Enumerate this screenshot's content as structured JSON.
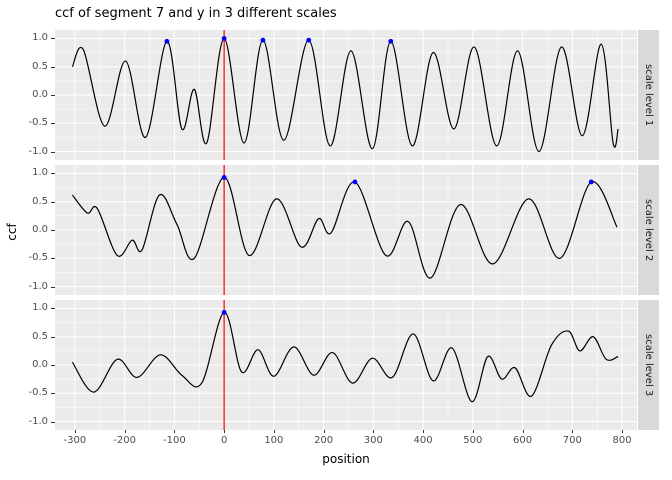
{
  "chart_data": {
    "type": "line",
    "title": "ccf of segment 7 and y in 3 different scales",
    "xlabel": "position",
    "ylabel": "ccf",
    "xlim": [
      -340,
      830
    ],
    "ylim": [
      -1.15,
      1.15
    ],
    "x_ticks": [
      -300,
      -200,
      -100,
      0,
      100,
      200,
      300,
      400,
      500,
      600,
      700,
      800
    ],
    "x_minor": [
      -250,
      -150,
      -50,
      50,
      150,
      250,
      350,
      450,
      550,
      650,
      750
    ],
    "y_ticks": [
      -1.0,
      -0.5,
      0.0,
      0.5,
      1.0
    ],
    "y_minor": [
      -0.75,
      -0.25,
      0.25,
      0.75
    ],
    "grid": "on",
    "vline": {
      "x": 0,
      "color": "#ff0000"
    },
    "colors": {
      "line": "#000000",
      "point": "#0000ff",
      "panel_bg": "#ebebeb",
      "strip_bg": "#d9d9d9",
      "grid": "#ffffff",
      "tick_text": "#4d4d4d"
    },
    "panels": [
      {
        "strip_label": "scale level 1",
        "keypoints": [
          [
            -305,
            0.5
          ],
          [
            -283,
            0.8
          ],
          [
            -240,
            -0.55
          ],
          [
            -198,
            0.6
          ],
          [
            -158,
            -0.75
          ],
          [
            -115,
            0.95
          ],
          [
            -85,
            -0.6
          ],
          [
            -60,
            0.1
          ],
          [
            -35,
            -0.85
          ],
          [
            0,
            1.0
          ],
          [
            40,
            -0.85
          ],
          [
            78,
            0.97
          ],
          [
            120,
            -0.8
          ],
          [
            170,
            0.97
          ],
          [
            213,
            -0.9
          ],
          [
            255,
            0.78
          ],
          [
            298,
            -0.95
          ],
          [
            335,
            0.95
          ],
          [
            378,
            -0.9
          ],
          [
            420,
            0.75
          ],
          [
            462,
            -0.6
          ],
          [
            503,
            0.85
          ],
          [
            548,
            -0.9
          ],
          [
            590,
            0.78
          ],
          [
            633,
            -1.0
          ],
          [
            678,
            0.85
          ],
          [
            720,
            -0.72
          ],
          [
            758,
            0.9
          ],
          [
            782,
            -0.85
          ],
          [
            792,
            -0.6
          ]
        ],
        "peaks": [
          [
            -115,
            0.95
          ],
          [
            0,
            1.0
          ],
          [
            78,
            0.97
          ],
          [
            170,
            0.97
          ],
          [
            335,
            0.95
          ]
        ]
      },
      {
        "strip_label": "scale level 2",
        "keypoints": [
          [
            -305,
            0.62
          ],
          [
            -275,
            0.3
          ],
          [
            -255,
            0.38
          ],
          [
            -215,
            -0.45
          ],
          [
            -185,
            -0.18
          ],
          [
            -165,
            -0.35
          ],
          [
            -130,
            0.62
          ],
          [
            -95,
            0.1
          ],
          [
            -60,
            -0.5
          ],
          [
            0,
            0.93
          ],
          [
            50,
            -0.45
          ],
          [
            105,
            0.55
          ],
          [
            155,
            -0.3
          ],
          [
            190,
            0.2
          ],
          [
            215,
            -0.05
          ],
          [
            263,
            0.85
          ],
          [
            325,
            -0.45
          ],
          [
            370,
            0.15
          ],
          [
            415,
            -0.85
          ],
          [
            475,
            0.45
          ],
          [
            540,
            -0.6
          ],
          [
            612,
            0.55
          ],
          [
            675,
            -0.5
          ],
          [
            738,
            0.85
          ],
          [
            790,
            0.05
          ]
        ],
        "peaks": [
          [
            0,
            0.93
          ],
          [
            263,
            0.85
          ],
          [
            738,
            0.85
          ]
        ]
      },
      {
        "strip_label": "scale level 3",
        "keypoints": [
          [
            -305,
            0.05
          ],
          [
            -262,
            -0.48
          ],
          [
            -215,
            0.1
          ],
          [
            -175,
            -0.22
          ],
          [
            -128,
            0.18
          ],
          [
            -85,
            -0.18
          ],
          [
            -45,
            -0.32
          ],
          [
            0,
            0.93
          ],
          [
            35,
            -0.12
          ],
          [
            68,
            0.27
          ],
          [
            100,
            -0.2
          ],
          [
            140,
            0.32
          ],
          [
            180,
            -0.18
          ],
          [
            218,
            0.22
          ],
          [
            258,
            -0.32
          ],
          [
            298,
            0.12
          ],
          [
            338,
            -0.22
          ],
          [
            380,
            0.55
          ],
          [
            420,
            -0.28
          ],
          [
            458,
            0.3
          ],
          [
            498,
            -0.65
          ],
          [
            530,
            0.15
          ],
          [
            558,
            -0.25
          ],
          [
            585,
            -0.05
          ],
          [
            618,
            -0.55
          ],
          [
            658,
            0.35
          ],
          [
            692,
            0.6
          ],
          [
            715,
            0.25
          ],
          [
            742,
            0.5
          ],
          [
            768,
            0.1
          ],
          [
            792,
            0.15
          ]
        ],
        "peaks": [
          [
            0,
            0.93
          ]
        ]
      }
    ]
  }
}
